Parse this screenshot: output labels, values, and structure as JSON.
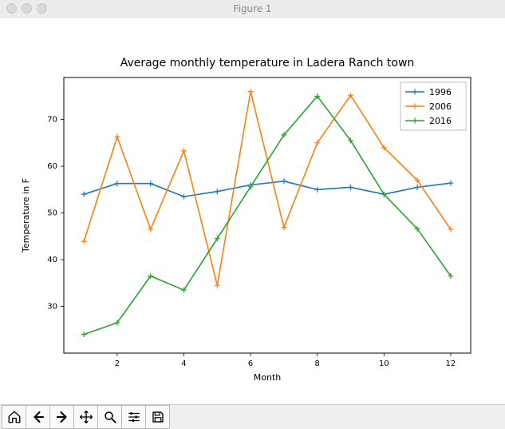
{
  "window": {
    "title": "Figure 1"
  },
  "chart": {
    "type": "line",
    "title": "Average monthly temperature in Ladera Ranch town",
    "title_fontsize": 14,
    "xlabel": "Month",
    "ylabel": "Temperature in F",
    "label_fontsize": 11,
    "tick_fontsize": 10,
    "background_color": "#ffffff",
    "axes_color": "#000000",
    "xlim": [
      0.4,
      12.6
    ],
    "ylim": [
      20,
      79
    ],
    "xticks": [
      2,
      4,
      6,
      8,
      10,
      12
    ],
    "yticks": [
      30,
      40,
      50,
      60,
      70
    ],
    "x": [
      1,
      2,
      3,
      4,
      5,
      6,
      7,
      8,
      9,
      10,
      11,
      12
    ],
    "series": [
      {
        "name": "1996",
        "color": "#1f77b4",
        "marker": "plus",
        "linewidth": 1.6,
        "markersize": 7,
        "y": [
          54.0,
          56.3,
          56.3,
          53.5,
          54.6,
          56.0,
          56.8,
          55.0,
          55.5,
          54.0,
          55.5,
          56.4
        ]
      },
      {
        "name": "2006",
        "color": "#ff7f0e",
        "marker": "plus",
        "linewidth": 1.6,
        "markersize": 7,
        "y": [
          43.9,
          66.3,
          46.5,
          63.3,
          34.5,
          76.0,
          46.9,
          65.0,
          75.2,
          64.0,
          57.0,
          46.5
        ]
      },
      {
        "name": "2016",
        "color": "#2ca02c",
        "marker": "plus",
        "linewidth": 1.6,
        "markersize": 7,
        "y": [
          24.0,
          26.5,
          36.5,
          33.5,
          44.5,
          55.6,
          66.7,
          75.0,
          65.5,
          54.0,
          46.6,
          36.5
        ]
      }
    ],
    "legend": {
      "position": "upper-right",
      "fontsize": 11,
      "border_color": "#bfbfbf",
      "background": "#ffffff"
    }
  },
  "toolbar": {
    "home": "Home",
    "back": "Back",
    "forward": "Forward",
    "pan": "Pan",
    "zoom": "Zoom",
    "configure": "Configure",
    "save": "Save"
  }
}
